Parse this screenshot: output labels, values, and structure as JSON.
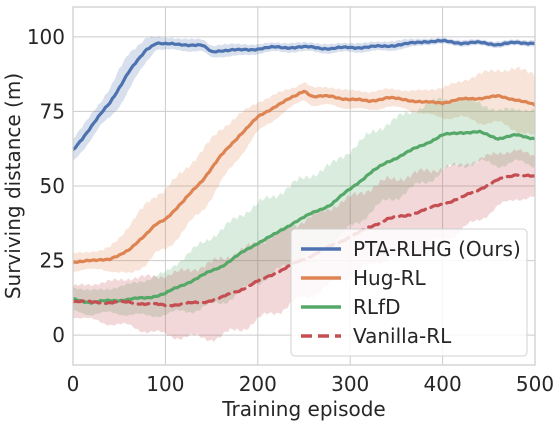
{
  "chart_data": {
    "type": "line",
    "title": "",
    "xlabel": "Training episode",
    "ylabel": "Surviving distance (m)",
    "xlim": [
      0,
      500
    ],
    "ylim": [
      -10,
      110
    ],
    "xticks": [
      0,
      100,
      200,
      300,
      400,
      500
    ],
    "yticks": [
      0,
      25,
      50,
      75,
      100
    ],
    "grid": true,
    "legend_position": "lower-right",
    "series": [
      {
        "name": "PTA-RLHG (Ours)",
        "color": "#4c72b0",
        "dashed": false,
        "x": [
          0,
          10,
          20,
          30,
          40,
          50,
          60,
          70,
          80,
          90,
          100,
          120,
          140,
          150,
          160,
          180,
          200,
          220,
          240,
          260,
          280,
          300,
          320,
          340,
          360,
          380,
          400,
          420,
          440,
          460,
          480,
          500
        ],
        "values": [
          62,
          66,
          70,
          74,
          78,
          83,
          88,
          92,
          96,
          98,
          97.5,
          97.5,
          97,
          95,
          95.5,
          95.5,
          96,
          96.5,
          96.5,
          96.5,
          96,
          96.5,
          96.5,
          97,
          97.5,
          98.5,
          98.5,
          98,
          98,
          97.5,
          98,
          98
        ],
        "band": [
          4,
          4,
          4,
          4,
          5,
          6,
          6,
          5,
          4,
          2,
          2,
          2,
          2,
          2,
          2,
          2,
          1.5,
          1.5,
          1.5,
          1.5,
          1.5,
          1.5,
          1.5,
          1.5,
          1.5,
          1,
          1,
          1,
          1,
          1,
          1,
          1
        ]
      },
      {
        "name": "Hug-RL",
        "color": "#dd8452",
        "dashed": false,
        "x": [
          0,
          10,
          20,
          30,
          40,
          50,
          60,
          70,
          80,
          90,
          100,
          120,
          140,
          160,
          180,
          200,
          220,
          240,
          250,
          260,
          280,
          300,
          320,
          340,
          360,
          380,
          400,
          420,
          440,
          460,
          480,
          500
        ],
        "values": [
          24.5,
          24.5,
          25,
          25.5,
          25.5,
          26.5,
          28.5,
          31.5,
          34,
          37,
          39,
          45,
          52,
          60,
          67,
          73,
          77,
          80,
          82,
          80,
          80,
          79,
          78.5,
          79.5,
          79,
          78,
          78,
          79,
          79.5,
          80,
          79,
          77
        ],
        "band": [
          3,
          3,
          3,
          3,
          4,
          6,
          8,
          9,
          10,
          10,
          10,
          10,
          10,
          9,
          7,
          5,
          4,
          3,
          3,
          3,
          3,
          3,
          3,
          3,
          3,
          4,
          5,
          6,
          8,
          9,
          10,
          11
        ]
      },
      {
        "name": "RLfD",
        "color": "#55a868",
        "dashed": false,
        "x": [
          0,
          20,
          40,
          60,
          80,
          100,
          120,
          140,
          160,
          180,
          200,
          220,
          240,
          260,
          280,
          300,
          320,
          340,
          360,
          380,
          400,
          420,
          440,
          460,
          480,
          500
        ],
        "values": [
          12,
          11,
          11.5,
          12,
          12.5,
          14,
          17,
          20,
          23,
          27,
          31,
          34,
          38,
          41,
          44,
          49,
          54,
          58,
          61,
          64,
          67,
          68,
          68,
          66,
          67,
          66
        ],
        "band": [
          4,
          4,
          4,
          5,
          6,
          7,
          9,
          11,
          12,
          13,
          13,
          13,
          13,
          13,
          13,
          13,
          13,
          13,
          13,
          13,
          12,
          11,
          10,
          9,
          9,
          9
        ]
      },
      {
        "name": "Vanilla-RL",
        "color": "#c44e52",
        "dashed": true,
        "x": [
          0,
          20,
          40,
          60,
          80,
          100,
          120,
          140,
          160,
          180,
          200,
          220,
          240,
          260,
          280,
          300,
          320,
          340,
          360,
          380,
          400,
          420,
          440,
          460,
          480,
          500
        ],
        "values": [
          11.5,
          11,
          11,
          11,
          10.5,
          10,
          10.5,
          11,
          12.5,
          15,
          18,
          21,
          24,
          27,
          30,
          33,
          36,
          39,
          40,
          42,
          44,
          46,
          49,
          52,
          54,
          53
        ],
        "band": [
          5,
          6,
          7,
          8,
          9,
          10,
          11,
          12,
          13,
          13,
          13,
          13,
          13,
          13,
          13,
          13,
          13,
          13,
          13,
          13,
          12,
          11,
          10,
          9,
          8,
          7
        ]
      }
    ]
  }
}
